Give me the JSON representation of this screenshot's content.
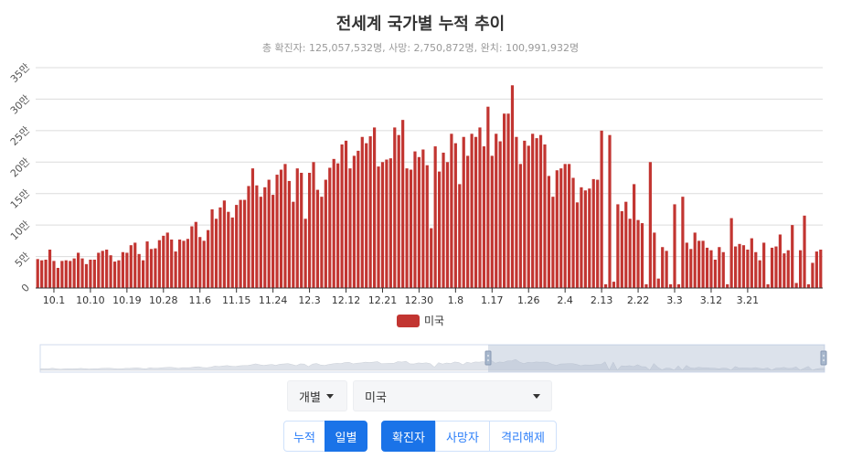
{
  "chart_data": {
    "type": "bar",
    "title": "전세계 국가별 누적 추이",
    "subtitle": "총 확진자: 125,057,532명, 사망: 2,750,872명, 완치: 100,991,932명",
    "ylim": [
      0,
      350000
    ],
    "yticks": [
      0,
      50000,
      100000,
      150000,
      200000,
      250000,
      300000,
      350000
    ],
    "ytick_labels": [
      "0",
      "5만",
      "10만",
      "15만",
      "20만",
      "25만",
      "30만",
      "35만"
    ],
    "xtick_labels": [
      "10.1",
      "10.10",
      "10.19",
      "10.28",
      "11.6",
      "11.15",
      "11.24",
      "12.3",
      "12.12",
      "12.21",
      "12.30",
      "1.8",
      "1.17",
      "1.26",
      "2.4",
      "2.13",
      "2.22",
      "3.3",
      "3.12",
      "3.21"
    ],
    "xtick_interval_days": 9,
    "first_tick_index": 4,
    "start_date": "9.27",
    "grid": true,
    "legend_position": "bottom",
    "series": [
      {
        "name": "미국",
        "color": "#c23531",
        "values": [
          46000,
          44000,
          45000,
          61000,
          43000,
          32000,
          43000,
          44000,
          43000,
          47000,
          56000,
          47000,
          38000,
          45000,
          45000,
          56000,
          59000,
          61000,
          52000,
          42000,
          44000,
          57000,
          56000,
          68000,
          72000,
          54000,
          44000,
          74000,
          62000,
          63000,
          76000,
          83000,
          88000,
          77000,
          58000,
          77000,
          75000,
          78000,
          98000,
          105000,
          81000,
          75000,
          92000,
          125000,
          110000,
          128000,
          139000,
          121000,
          112000,
          132000,
          140000,
          140000,
          162000,
          190000,
          163000,
          145000,
          160000,
          172000,
          148000,
          180000,
          188000,
          197000,
          170000,
          137000,
          190000,
          183000,
          110000,
          183000,
          200000,
          156000,
          145000,
          172000,
          191000,
          205000,
          198000,
          228000,
          234000,
          190000,
          210000,
          218000,
          240000,
          230000,
          241000,
          255000,
          193000,
          200000,
          204000,
          206000,
          255000,
          243000,
          267000,
          190000,
          188000,
          217000,
          208000,
          220000,
          195000,
          95000,
          225000,
          185000,
          215000,
          200000,
          245000,
          230000,
          165000,
          240000,
          210000,
          245000,
          240000,
          255000,
          225000,
          288000,
          210000,
          245000,
          233000,
          277000,
          277000,
          322000,
          240000,
          197000,
          234000,
          226000,
          245000,
          238000,
          243000,
          228000,
          178000,
          145000,
          187000,
          190000,
          197000,
          197000,
          175000,
          136000,
          160000,
          155000,
          158000,
          173000,
          172000,
          250000,
          6000,
          243000,
          10000,
          133000,
          122000,
          137000,
          110000,
          165000,
          108000,
          103000,
          6000,
          200000,
          88000,
          15000,
          65000,
          59000,
          6000,
          133000,
          6000,
          145000,
          72000,
          62000,
          88000,
          75000,
          75000,
          64000,
          60000,
          45000,
          65000,
          57000,
          6000,
          111000,
          66000,
          70000,
          68000,
          61000,
          79000,
          57000,
          44000,
          72000,
          6000,
          64000,
          66000,
          85000,
          55000,
          60000,
          100000,
          8000,
          60000,
          115000,
          6000,
          40000,
          58000,
          61000
        ]
      }
    ]
  },
  "controls": {
    "mode_dropdown": "개별",
    "country_dropdown": "미국",
    "view_toggle": [
      "누적",
      "일별"
    ],
    "view_active": 1,
    "metric_toggle": [
      "확진자",
      "사망자",
      "격리해제"
    ],
    "metric_active": 0
  }
}
